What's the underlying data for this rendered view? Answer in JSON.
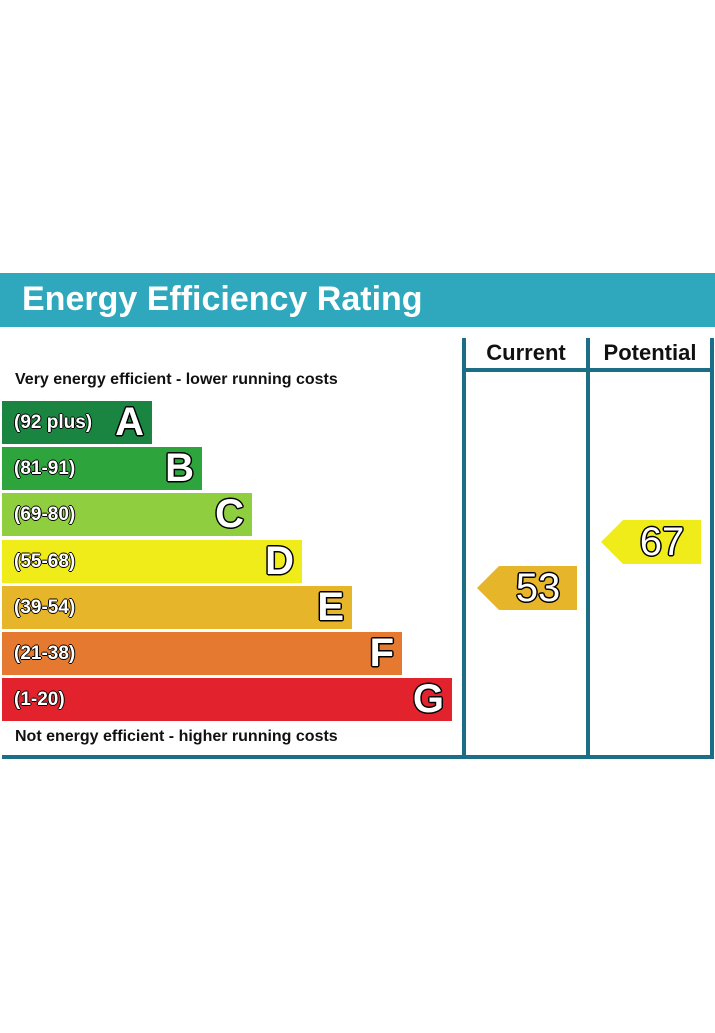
{
  "header": {
    "title": "Energy Efficiency Rating"
  },
  "columns": {
    "current": "Current",
    "potential": "Potential"
  },
  "notes": {
    "top": "Very energy efficient - lower running costs",
    "bottom": "Not energy efficient - higher running costs"
  },
  "colors": {
    "header": "#2fa8bd",
    "frame": "#1c6e86",
    "A": "#1a8540",
    "B": "#2ea43c",
    "C": "#8fcf3f",
    "D": "#f0ec1a",
    "E": "#e7b52a",
    "F": "#e67930",
    "G": "#e2222c"
  },
  "chart_data": {
    "type": "bar",
    "title": "Energy Efficiency Rating",
    "categories": [
      "A",
      "B",
      "C",
      "D",
      "E",
      "F",
      "G"
    ],
    "ranges": [
      "(92 plus)",
      "(81-91)",
      "(69-80)",
      "(55-68)",
      "(39-54)",
      "(21-38)",
      "(1-20)"
    ],
    "current": {
      "value": 53,
      "band": "E"
    },
    "potential": {
      "value": 67,
      "band": "D"
    }
  }
}
